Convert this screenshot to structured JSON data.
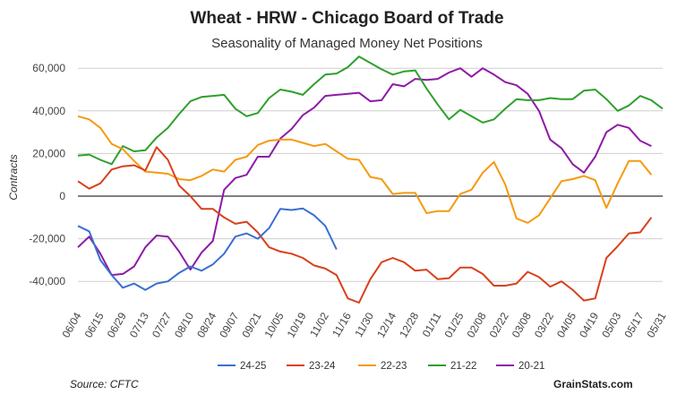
{
  "chart_data": {
    "type": "line",
    "title": "Wheat - HRW - Chicago Board of Trade",
    "subtitle": "Seasonality of Managed Money Net Positions",
    "ylabel": "Contracts",
    "xlabel": "",
    "ylim": [
      -60000,
      70000
    ],
    "yticks": [
      -40000,
      -20000,
      0,
      20000,
      40000,
      60000
    ],
    "ytick_labels": [
      "-40,000",
      "-20,000",
      "0",
      "20,000",
      "40,000",
      "60,000"
    ],
    "xtick_labels": [
      "06/04",
      "06/15",
      "06/29",
      "07/13",
      "07/27",
      "08/10",
      "08/24",
      "09/07",
      "09/21",
      "10/05",
      "10/19",
      "11/02",
      "11/16",
      "11/30",
      "12/14",
      "12/28",
      "01/11",
      "01/25",
      "02/08",
      "02/22",
      "03/08",
      "03/22",
      "04/05",
      "04/19",
      "05/03",
      "05/17",
      "05/31"
    ],
    "num_points": 53,
    "series": [
      {
        "name": "24-25",
        "color": "#3a6fcf",
        "values": [
          -14000,
          -16500,
          -30000,
          -37000,
          -43000,
          -41000,
          -44000,
          -41000,
          -40000,
          -36000,
          -33000,
          -35000,
          -32000,
          -27000,
          -19000,
          -17500,
          -20000,
          -15000,
          -6000,
          -6500,
          -5800,
          -9000,
          -14000,
          -25000
        ]
      },
      {
        "name": "23-24",
        "color": "#d9401c",
        "values": [
          7000,
          3500,
          6000,
          12500,
          14000,
          14500,
          12000,
          23000,
          17000,
          5000,
          0,
          -6000,
          -6000,
          -10000,
          -13000,
          -12000,
          -17000,
          -24000,
          -26000,
          -27000,
          -29000,
          -32500,
          -34000,
          -37000,
          -48000,
          -50000,
          -39000,
          -31000,
          -29000,
          -31000,
          -35000,
          -34500,
          -39000,
          -38500,
          -33500,
          -33500,
          -36500,
          -42000,
          -42000,
          -41000,
          -35500,
          -38000,
          -42500,
          -40000,
          -44000,
          -49000,
          -48000,
          -29000,
          -23500,
          -17500,
          -17000,
          -10000
        ]
      },
      {
        "name": "22-23",
        "color": "#f59a0f",
        "values": [
          37500,
          36000,
          32000,
          24500,
          22000,
          16500,
          11500,
          11000,
          10500,
          8000,
          7500,
          9500,
          12500,
          11500,
          17000,
          18500,
          24000,
          26000,
          26500,
          26500,
          25000,
          23500,
          24500,
          21000,
          17500,
          17000,
          9000,
          8000,
          1000,
          1500,
          1500,
          -8000,
          -7000,
          -7000,
          1000,
          3000,
          11000,
          16000,
          5500,
          -10500,
          -12500,
          -9000,
          -1000,
          7000,
          8000,
          9500,
          7500,
          -5500,
          6000,
          16500,
          16500,
          10000
        ]
      },
      {
        "name": "21-22",
        "color": "#2ea02c",
        "values": [
          19000,
          19500,
          17000,
          15000,
          23500,
          21000,
          21500,
          27500,
          32000,
          38500,
          44500,
          46500,
          47000,
          47500,
          41000,
          37500,
          39000,
          46000,
          50000,
          49000,
          47500,
          52500,
          57000,
          57500,
          60500,
          65500,
          62500,
          59500,
          57000,
          58500,
          59000,
          50500,
          43000,
          36000,
          40500,
          37500,
          34500,
          36000,
          41000,
          45500,
          45000,
          45000,
          46000,
          45500,
          45500,
          49500,
          50000,
          45500,
          40000,
          42500,
          47000,
          45000,
          41000
        ]
      },
      {
        "name": "20-21",
        "color": "#8e1aa6",
        "values": [
          -24000,
          -19000,
          -27000,
          -37000,
          -36500,
          -33000,
          -24000,
          -18500,
          -19000,
          -26000,
          -34500,
          -26500,
          -21000,
          3000,
          8500,
          10000,
          18500,
          18500,
          27000,
          31500,
          38000,
          41500,
          47000,
          47500,
          48000,
          48500,
          44500,
          45000,
          52500,
          51500,
          55000,
          54500,
          55000,
          58000,
          60000,
          56000,
          60000,
          57000,
          53500,
          52000,
          48000,
          40000,
          26500,
          22500,
          15000,
          11000,
          18500,
          30000,
          33500,
          32000,
          26000,
          23500
        ]
      }
    ],
    "legend_position": "bottom",
    "grid": true
  },
  "footer": {
    "source": "Source: CFTC",
    "brand": "GrainStats.com"
  }
}
